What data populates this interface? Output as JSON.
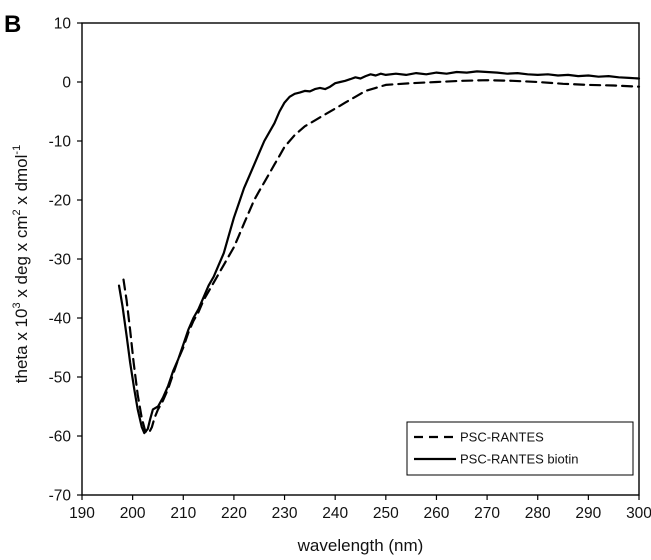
{
  "panel_label": "B",
  "chart_data": {
    "type": "line",
    "xlabel": "wavelength (nm)",
    "ylabel_parts": {
      "a": "theta x 10",
      "a_sup": "3",
      "b": " x deg x cm",
      "b_sup": "2",
      "c": " x dmol",
      "c_sup": "-1"
    },
    "xlim": [
      190,
      300
    ],
    "ylim": [
      -70,
      10
    ],
    "xticks": [
      "190",
      "200",
      "210",
      "220",
      "230",
      "240",
      "250",
      "260",
      "270",
      "280",
      "290",
      "300"
    ],
    "yticks": [
      "10",
      "0",
      "-10",
      "-20",
      "-30",
      "-40",
      "-50",
      "-60",
      "-70"
    ],
    "legend_position": "bottom-right",
    "series": [
      {
        "name": "PSC-RANTES",
        "style": "dashed",
        "color": "#000000",
        "points": [
          [
            198.2,
            -33.5
          ],
          [
            198.8,
            -37
          ],
          [
            199.5,
            -42
          ],
          [
            200.2,
            -47.5
          ],
          [
            201,
            -53
          ],
          [
            201.8,
            -57
          ],
          [
            202.5,
            -59.2
          ],
          [
            203.2,
            -59.5
          ],
          [
            203.8,
            -58.5
          ],
          [
            204.3,
            -57
          ],
          [
            205,
            -55.5
          ],
          [
            206,
            -54
          ],
          [
            207,
            -52
          ],
          [
            208,
            -49.5
          ],
          [
            209,
            -47
          ],
          [
            210,
            -45
          ],
          [
            211,
            -42.5
          ],
          [
            212,
            -40.5
          ],
          [
            213,
            -39
          ],
          [
            214,
            -37
          ],
          [
            215,
            -35.5
          ],
          [
            216,
            -34
          ],
          [
            217,
            -32.5
          ],
          [
            218,
            -31
          ],
          [
            219,
            -29.5
          ],
          [
            220,
            -28
          ],
          [
            221,
            -26
          ],
          [
            222,
            -24
          ],
          [
            223,
            -22
          ],
          [
            224,
            -20
          ],
          [
            225,
            -18.5
          ],
          [
            226,
            -17
          ],
          [
            227,
            -15.5
          ],
          [
            228,
            -14
          ],
          [
            229,
            -12.5
          ],
          [
            230,
            -11
          ],
          [
            232,
            -9
          ],
          [
            234,
            -7.5
          ],
          [
            236,
            -6.5
          ],
          [
            238,
            -5.5
          ],
          [
            240,
            -4.5
          ],
          [
            242,
            -3.5
          ],
          [
            244,
            -2.5
          ],
          [
            246,
            -1.5
          ],
          [
            248,
            -1
          ],
          [
            250,
            -0.5
          ],
          [
            255,
            -0.2
          ],
          [
            260,
            0
          ],
          [
            265,
            0.2
          ],
          [
            270,
            0.3
          ],
          [
            275,
            0.2
          ],
          [
            280,
            0
          ],
          [
            285,
            -0.3
          ],
          [
            290,
            -0.5
          ],
          [
            295,
            -0.6
          ],
          [
            300,
            -0.8
          ]
        ]
      },
      {
        "name": "PSC-RANTES biotin",
        "style": "solid",
        "color": "#000000",
        "points": [
          [
            197.3,
            -34.5
          ],
          [
            198,
            -38
          ],
          [
            198.8,
            -43
          ],
          [
            199.5,
            -47.5
          ],
          [
            200.3,
            -52
          ],
          [
            201,
            -55.5
          ],
          [
            201.8,
            -58.5
          ],
          [
            202.3,
            -59.5
          ],
          [
            203,
            -58.8
          ],
          [
            203.5,
            -57
          ],
          [
            204,
            -55.5
          ],
          [
            205,
            -55
          ],
          [
            206,
            -53.5
          ],
          [
            207,
            -51.5
          ],
          [
            208,
            -49
          ],
          [
            209,
            -47
          ],
          [
            210,
            -44.5
          ],
          [
            211,
            -42
          ],
          [
            212,
            -40
          ],
          [
            213,
            -38.5
          ],
          [
            214,
            -36.5
          ],
          [
            215,
            -34.5
          ],
          [
            216,
            -33
          ],
          [
            217,
            -31
          ],
          [
            218,
            -29
          ],
          [
            219,
            -26
          ],
          [
            220,
            -23
          ],
          [
            221,
            -20.5
          ],
          [
            222,
            -18
          ],
          [
            223,
            -16
          ],
          [
            224,
            -14
          ],
          [
            225,
            -12
          ],
          [
            226,
            -10
          ],
          [
            227,
            -8.5
          ],
          [
            228,
            -7
          ],
          [
            229,
            -5
          ],
          [
            230,
            -3.5
          ],
          [
            231,
            -2.5
          ],
          [
            232,
            -2
          ],
          [
            233,
            -1.8
          ],
          [
            234,
            -1.5
          ],
          [
            235,
            -1.6
          ],
          [
            236,
            -1.2
          ],
          [
            237,
            -1
          ],
          [
            238,
            -1.2
          ],
          [
            239,
            -0.8
          ],
          [
            240,
            -0.2
          ],
          [
            241,
            0
          ],
          [
            242,
            0.2
          ],
          [
            243,
            0.5
          ],
          [
            244,
            0.8
          ],
          [
            245,
            0.6
          ],
          [
            246,
            1
          ],
          [
            247,
            1.3
          ],
          [
            248,
            1.1
          ],
          [
            249,
            1.4
          ],
          [
            250,
            1.2
          ],
          [
            252,
            1.4
          ],
          [
            254,
            1.2
          ],
          [
            256,
            1.5
          ],
          [
            258,
            1.3
          ],
          [
            260,
            1.6
          ],
          [
            262,
            1.4
          ],
          [
            264,
            1.7
          ],
          [
            266,
            1.6
          ],
          [
            268,
            1.8
          ],
          [
            270,
            1.7
          ],
          [
            272,
            1.6
          ],
          [
            274,
            1.4
          ],
          [
            276,
            1.5
          ],
          [
            278,
            1.3
          ],
          [
            280,
            1.2
          ],
          [
            282,
            1.3
          ],
          [
            284,
            1.1
          ],
          [
            286,
            1.2
          ],
          [
            288,
            1
          ],
          [
            290,
            1.1
          ],
          [
            292,
            0.9
          ],
          [
            294,
            1
          ],
          [
            296,
            0.8
          ],
          [
            298,
            0.7
          ],
          [
            300,
            0.6
          ]
        ]
      }
    ]
  }
}
